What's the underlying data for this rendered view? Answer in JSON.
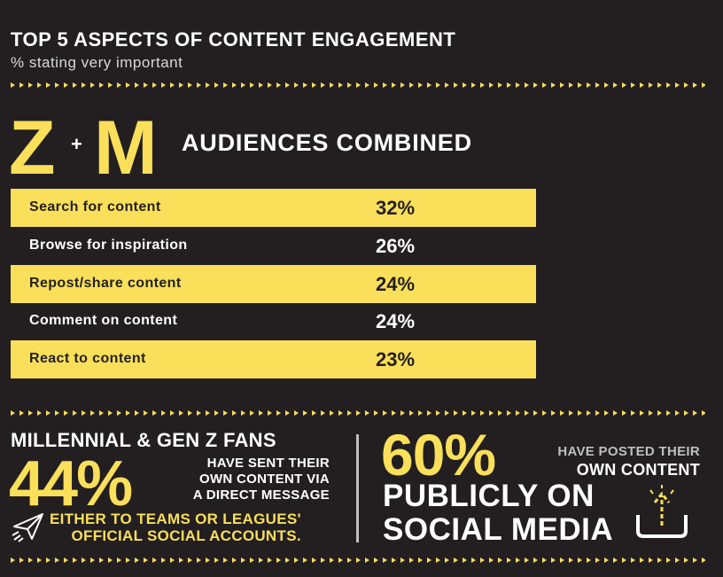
{
  "header": {
    "title": "TOP 5 ASPECTS OF CONTENT ENGAGEMENT",
    "subtitle": "% stating very important"
  },
  "section": {
    "left": "Z",
    "plus": "+",
    "right": "M",
    "title": "AUDIENCES COMBINED"
  },
  "table": {
    "rows": [
      [
        "Search for content",
        "32%"
      ],
      [
        "Browse for inspiration",
        "26%"
      ],
      [
        "Repost/share content",
        "24%"
      ],
      [
        "Comment on content",
        "24%"
      ],
      [
        "React to content",
        "23%"
      ]
    ]
  },
  "stats": [
    {
      "lead": "MILLENNIAL & GEN Z FANS",
      "value": "44%",
      "text": [
        "HAVE SENT THEIR",
        "OWN CONTENT VIA",
        "A DIRECT MESSAGE"
      ],
      "footer": [
        "EITHER TO TEAMS OR LEAGUES'",
        "OFFICIAL SOCIAL ACCOUNTS."
      ]
    },
    {
      "value": "60%",
      "text": [
        "HAVE POSTED THEIR",
        "OWN CONTENT"
      ],
      "footer": [
        "PUBLICLY ON",
        "SOCIAL MEDIA"
      ]
    }
  ]
}
